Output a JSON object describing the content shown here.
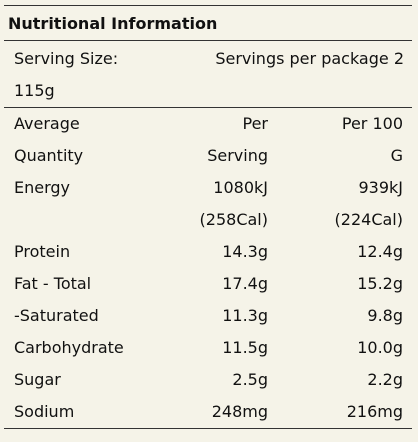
{
  "header": {
    "title": "Nutritional Information"
  },
  "serving": {
    "size": "Serving Size: 115g",
    "per_package": "Servings per package 2"
  },
  "table": {
    "columns": [
      "Average Quantity",
      "Per Serving",
      "Per 100 G"
    ],
    "rows": [
      [
        "Energy",
        "1080kJ (258Cal)",
        "939kJ (224Cal)"
      ],
      [
        "Protein",
        "14.3g",
        "12.4g"
      ],
      [
        "Fat - Total",
        "17.4g",
        "15.2g"
      ],
      [
        "-Saturated",
        "11.3g",
        "9.8g"
      ],
      [
        "Carbohydrate",
        "11.5g",
        "10.0g"
      ],
      [
        "Sugar",
        "2.5g",
        "2.2g"
      ],
      [
        "Sodium",
        "248mg",
        "216mg"
      ]
    ]
  }
}
